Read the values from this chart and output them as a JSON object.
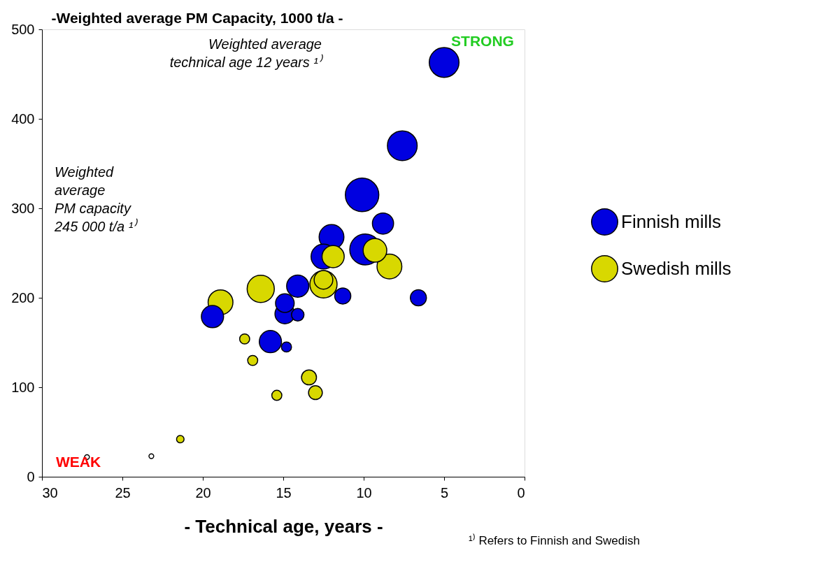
{
  "chart_data": {
    "type": "bubble",
    "ylabel": "-Weighted average PM Capacity, 1000 t/a -",
    "xlabel": "- Technical age, years -",
    "xlim": [
      30,
      0
    ],
    "xticks": [
      30,
      25,
      20,
      15,
      10,
      5,
      0
    ],
    "ylim": [
      0,
      500
    ],
    "yticks": [
      0,
      100,
      200,
      300,
      400,
      500
    ],
    "grid": false,
    "legend": "right",
    "series": [
      {
        "name": "Finnish mills",
        "color": "#0000e0",
        "x": [
          5.0,
          7.6,
          10.1,
          8.8,
          9.9,
          12.0,
          12.5,
          11.3,
          6.6,
          14.1,
          14.9,
          14.9,
          14.1,
          19.4,
          15.8,
          14.8
        ],
        "values": [
          463,
          370,
          315,
          283,
          254,
          268,
          246,
          202,
          200,
          213,
          194,
          182,
          181,
          179,
          151,
          145
        ],
        "sizes": [
          0.79,
          0.79,
          1,
          0.4,
          0.86,
          0.55,
          0.55,
          0.23,
          0.23,
          0.44,
          0.31,
          0.35,
          0.14,
          0.44,
          0.44,
          0.09
        ]
      },
      {
        "name": "Swedish mills",
        "color": "#d8d800",
        "x": [
          18.9,
          16.4,
          11.9,
          9.3,
          8.4,
          12.5,
          12.5,
          17.4,
          16.9,
          13.4,
          13.0,
          15.4,
          21.4
        ],
        "values": [
          195,
          210,
          246,
          253,
          235,
          215,
          220,
          154,
          130,
          111,
          94,
          91,
          42
        ],
        "sizes": [
          0.55,
          0.66,
          0.44,
          0.5,
          0.55,
          0.66,
          0.31,
          0.09,
          0.09,
          0.2,
          0.17,
          0.09,
          0.05
        ]
      },
      {
        "color": "#ffffff",
        "x": [
          23.2,
          27.2
        ],
        "values": [
          23,
          22
        ],
        "sizes": [
          0.02,
          0.02
        ]
      }
    ],
    "annotations": [
      "Weighted average\ntechnical age 12 years ¹⁾",
      "Weighted\naverage\nPM capacity\n245 000 t/a ¹⁾",
      "STRONG",
      "WEAK",
      "¹⁾ Refers to Finnish and Swedish"
    ]
  }
}
